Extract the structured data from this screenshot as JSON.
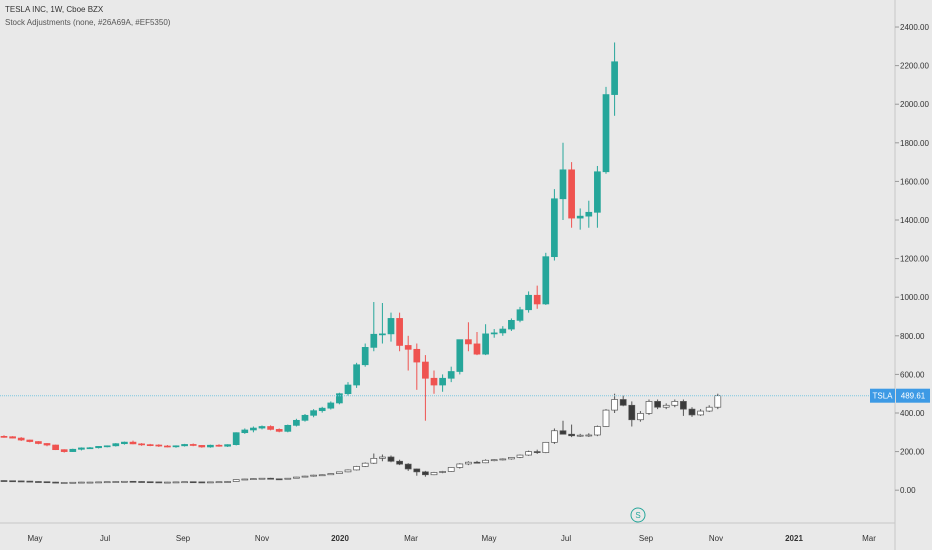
{
  "header": {
    "title": "TESLA INC, 1W, Cboe BZX",
    "indicator": "Stock Adjustments (none, #26A69A, #EF5350)"
  },
  "colors": {
    "background": "#e9e9e9",
    "up": "#26a69a",
    "down": "#ef5350",
    "axis_text": "#333333",
    "price_label_bg": "#3d9ae5",
    "price_line": "#7cc7df"
  },
  "chart_data": {
    "type": "candlestick",
    "symbol_label": "TSLA",
    "last_price": "489.61",
    "x_tick_labels": [
      "May",
      "Jul",
      "Sep",
      "Nov",
      "2020",
      "Mar",
      "May",
      "Jul",
      "Sep",
      "Nov",
      "2021",
      "Mar"
    ],
    "y_ticks": [
      "0.00",
      "200.00",
      "400.00",
      "600.00",
      "800.00",
      "1000.00",
      "1200.00",
      "1400.00",
      "1600.00",
      "1800.00",
      "2000.00",
      "2200.00",
      "2400.00"
    ],
    "ylim": [
      -170,
      2540
    ],
    "event_marker": "S",
    "series": [
      {
        "name": "TSLA",
        "ohlc": [
          [
            279,
            285,
            272,
            277
          ],
          [
            277,
            280,
            268,
            270
          ],
          [
            270,
            275,
            255,
            260
          ],
          [
            260,
            262,
            248,
            252
          ],
          [
            252,
            254,
            238,
            242
          ],
          [
            242,
            244,
            228,
            234
          ],
          [
            234,
            236,
            208,
            210
          ],
          [
            210,
            212,
            195,
            200
          ],
          [
            200,
            215,
            198,
            212
          ],
          [
            212,
            222,
            206,
            219
          ],
          [
            219,
            224,
            214,
            220
          ],
          [
            220,
            229,
            216,
            227
          ],
          [
            227,
            232,
            222,
            230
          ],
          [
            230,
            244,
            226,
            241
          ],
          [
            241,
            252,
            236,
            249
          ],
          [
            249,
            257,
            238,
            240
          ],
          [
            240,
            244,
            230,
            236
          ],
          [
            236,
            240,
            228,
            234
          ],
          [
            234,
            238,
            224,
            229
          ],
          [
            229,
            234,
            222,
            226
          ],
          [
            226,
            232,
            220,
            230
          ],
          [
            230,
            240,
            226,
            237
          ],
          [
            237,
            242,
            228,
            232
          ],
          [
            232,
            234,
            220,
            224
          ],
          [
            224,
            236,
            220,
            233
          ],
          [
            233,
            238,
            225,
            228
          ],
          [
            228,
            238,
            224,
            236
          ],
          [
            236,
            300,
            232,
            298
          ],
          [
            298,
            320,
            292,
            312
          ],
          [
            312,
            330,
            300,
            322
          ],
          [
            322,
            335,
            315,
            330
          ],
          [
            330,
            336,
            310,
            315
          ],
          [
            315,
            320,
            300,
            305
          ],
          [
            305,
            340,
            300,
            336
          ],
          [
            336,
            370,
            330,
            362
          ],
          [
            362,
            395,
            355,
            388
          ],
          [
            388,
            420,
            378,
            412
          ],
          [
            412,
            432,
            402,
            425
          ],
          [
            425,
            460,
            418,
            452
          ],
          [
            452,
            505,
            445,
            500
          ],
          [
            500,
            560,
            490,
            545
          ],
          [
            545,
            660,
            530,
            650
          ],
          [
            650,
            760,
            640,
            740
          ],
          [
            740,
            975,
            720,
            808
          ],
          [
            808,
            970,
            760,
            810
          ],
          [
            810,
            920,
            770,
            890
          ],
          [
            890,
            920,
            720,
            750
          ],
          [
            750,
            800,
            620,
            730
          ],
          [
            730,
            760,
            520,
            664
          ],
          [
            664,
            700,
            360,
            580
          ],
          [
            580,
            620,
            500,
            545
          ],
          [
            545,
            600,
            510,
            580
          ],
          [
            580,
            640,
            560,
            615
          ],
          [
            615,
            780,
            600,
            780
          ],
          [
            780,
            870,
            720,
            758
          ],
          [
            758,
            820,
            700,
            705
          ],
          [
            705,
            860,
            700,
            810
          ],
          [
            810,
            835,
            790,
            815
          ],
          [
            815,
            850,
            800,
            835
          ],
          [
            835,
            890,
            825,
            880
          ],
          [
            880,
            950,
            870,
            935
          ],
          [
            935,
            1030,
            920,
            1010
          ],
          [
            1010,
            1060,
            940,
            965
          ],
          [
            965,
            1230,
            960,
            1210
          ],
          [
            1210,
            1560,
            1190,
            1510
          ],
          [
            1510,
            1800,
            1400,
            1660
          ],
          [
            1660,
            1700,
            1360,
            1410
          ],
          [
            1410,
            1460,
            1350,
            1420
          ],
          [
            1420,
            1500,
            1360,
            1440
          ],
          [
            1440,
            1680,
            1360,
            1650
          ],
          [
            1650,
            2090,
            1640,
            2050
          ],
          [
            2050,
            2320,
            1940,
            2220
          ]
        ]
      },
      {
        "name": "Stock Adjustments",
        "ohlc": [
          [
            50,
            51,
            48,
            49
          ],
          [
            49,
            50,
            47,
            48
          ],
          [
            48,
            49,
            46,
            47
          ],
          [
            47,
            48,
            44,
            45
          ],
          [
            45,
            46,
            42,
            44
          ],
          [
            44,
            45,
            40,
            42
          ],
          [
            42,
            43,
            38,
            39
          ],
          [
            39,
            41,
            37,
            40
          ],
          [
            40,
            42,
            39,
            41
          ],
          [
            41,
            43,
            39,
            42
          ],
          [
            42,
            43,
            41,
            42
          ],
          [
            42,
            44,
            41,
            43
          ],
          [
            43,
            45,
            42,
            44
          ],
          [
            44,
            46,
            42,
            45
          ],
          [
            45,
            47,
            44,
            46
          ],
          [
            46,
            47,
            44,
            45
          ],
          [
            45,
            46,
            43,
            44
          ],
          [
            44,
            45,
            42,
            43
          ],
          [
            43,
            44,
            41,
            42
          ],
          [
            42,
            43,
            41,
            42
          ],
          [
            42,
            44,
            41,
            43
          ],
          [
            43,
            45,
            42,
            44
          ],
          [
            44,
            45,
            42,
            43
          ],
          [
            43,
            44,
            41,
            42
          ],
          [
            42,
            44,
            41,
            43
          ],
          [
            43,
            45,
            42,
            44
          ],
          [
            44,
            46,
            43,
            45
          ],
          [
            45,
            56,
            44,
            55
          ],
          [
            55,
            59,
            54,
            58
          ],
          [
            58,
            61,
            56,
            60
          ],
          [
            60,
            63,
            58,
            62
          ],
          [
            62,
            64,
            58,
            59
          ],
          [
            59,
            60,
            56,
            57
          ],
          [
            57,
            63,
            56,
            62
          ],
          [
            62,
            69,
            61,
            68
          ],
          [
            68,
            75,
            66,
            73
          ],
          [
            73,
            80,
            70,
            78
          ],
          [
            78,
            82,
            76,
            80
          ],
          [
            80,
            87,
            79,
            86
          ],
          [
            86,
            96,
            85,
            95
          ],
          [
            95,
            108,
            93,
            105
          ],
          [
            105,
            126,
            102,
            123
          ],
          [
            123,
            144,
            120,
            140
          ],
          [
            140,
            190,
            136,
            165
          ],
          [
            165,
            185,
            150,
            172
          ],
          [
            172,
            180,
            145,
            150
          ],
          [
            150,
            158,
            130,
            135
          ],
          [
            135,
            140,
            100,
            110
          ],
          [
            110,
            112,
            75,
            95
          ],
          [
            95,
            100,
            70,
            80
          ],
          [
            80,
            95,
            78,
            92
          ],
          [
            92,
            100,
            88,
            97
          ],
          [
            97,
            120,
            95,
            118
          ],
          [
            118,
            140,
            112,
            136
          ],
          [
            136,
            150,
            130,
            145
          ],
          [
            145,
            152,
            138,
            142
          ],
          [
            142,
            160,
            140,
            155
          ],
          [
            155,
            160,
            150,
            158
          ],
          [
            158,
            165,
            154,
            162
          ],
          [
            162,
            172,
            158,
            170
          ],
          [
            170,
            185,
            166,
            182
          ],
          [
            182,
            205,
            178,
            200
          ],
          [
            200,
            210,
            188,
            195
          ],
          [
            195,
            250,
            192,
            248
          ],
          [
            248,
            320,
            240,
            308
          ],
          [
            308,
            360,
            290,
            290
          ],
          [
            290,
            340,
            275,
            282
          ],
          [
            282,
            292,
            276,
            285
          ],
          [
            285,
            295,
            276,
            286
          ],
          [
            286,
            335,
            280,
            330
          ],
          [
            330,
            420,
            328,
            415
          ],
          [
            415,
            500,
            400,
            470
          ],
          [
            470,
            490,
            435,
            440
          ],
          [
            440,
            460,
            330,
            365
          ],
          [
            365,
            410,
            355,
            398
          ],
          [
            398,
            470,
            390,
            460
          ],
          [
            460,
            470,
            420,
            430
          ],
          [
            430,
            450,
            420,
            440
          ],
          [
            440,
            470,
            430,
            460
          ],
          [
            460,
            470,
            385,
            420
          ],
          [
            420,
            430,
            380,
            390
          ],
          [
            390,
            420,
            385,
            410
          ],
          [
            410,
            440,
            405,
            430
          ],
          [
            430,
            500,
            420,
            489.61
          ]
        ]
      }
    ]
  }
}
